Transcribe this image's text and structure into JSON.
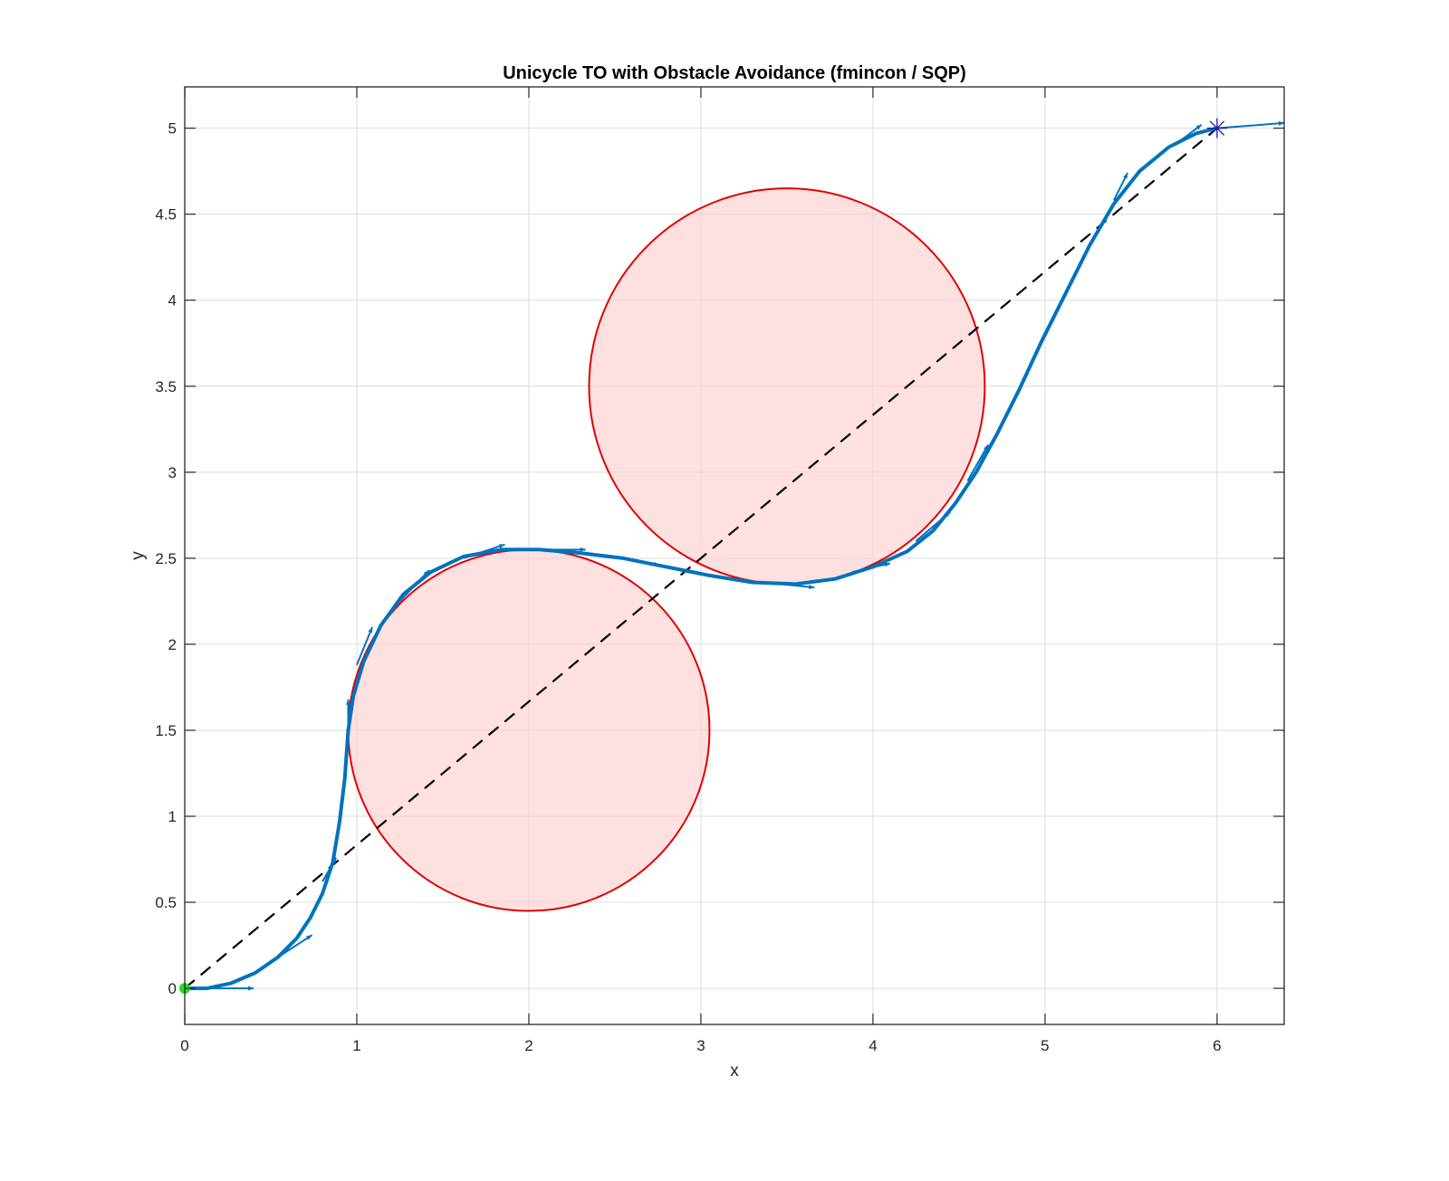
{
  "chart_data": {
    "type": "line",
    "title": "Unicycle TO with Obstacle Avoidance (fmincon / SQP)",
    "xlabel": "x",
    "ylabel": "y",
    "xlim": [
      0,
      6.39
    ],
    "ylim": [
      -0.21,
      5.24
    ],
    "grid": true,
    "xticks": [
      0,
      1,
      2,
      3,
      4,
      5,
      6
    ],
    "yticks": [
      0,
      0.5,
      1,
      1.5,
      2,
      2.5,
      3,
      3.5,
      4,
      4.5,
      5
    ],
    "xtick_labels": [
      "0",
      "1",
      "2",
      "3",
      "4",
      "5",
      "6"
    ],
    "ytick_labels": [
      "0",
      "0.5",
      "1",
      "1.5",
      "2",
      "2.5",
      "3",
      "3.5",
      "4",
      "4.5",
      "5"
    ],
    "obstacles": [
      {
        "name": "obstacle-1",
        "cx": 2.0,
        "cy": 1.5,
        "r": 1.05,
        "edge_color": "#e00000",
        "fill_color": "#ffcccc",
        "fill_opacity": 0.6
      },
      {
        "name": "obstacle-2",
        "cx": 3.5,
        "cy": 3.5,
        "r": 1.15,
        "edge_color": "#e00000",
        "fill_color": "#ffcccc",
        "fill_opacity": 0.6
      }
    ],
    "series": [
      {
        "name": "straight-line reference",
        "style": "dashed",
        "color": "#000000",
        "x": [
          0,
          6
        ],
        "y": [
          0,
          5
        ]
      },
      {
        "name": "optimized trajectory",
        "style": "solid",
        "color": "#0072bd",
        "x": [
          0,
          0.13,
          0.27,
          0.41,
          0.54,
          0.65,
          0.73,
          0.8,
          0.86,
          0.9,
          0.93,
          0.95,
          0.98,
          1.04,
          1.14,
          1.27,
          1.43,
          1.62,
          1.84,
          2.06,
          2.3,
          2.55,
          2.8,
          3.05,
          3.3,
          3.55,
          3.78,
          4.0,
          4.2,
          4.35,
          4.48,
          4.6,
          4.72,
          4.85,
          4.98,
          5.12,
          5.26,
          5.4,
          5.55,
          5.72,
          5.88,
          6.0
        ],
        "y": [
          0,
          0,
          0.03,
          0.09,
          0.18,
          0.29,
          0.41,
          0.55,
          0.73,
          0.97,
          1.22,
          1.5,
          1.7,
          1.9,
          2.11,
          2.29,
          2.42,
          2.51,
          2.55,
          2.55,
          2.53,
          2.5,
          2.45,
          2.4,
          2.36,
          2.35,
          2.38,
          2.45,
          2.54,
          2.66,
          2.82,
          3.0,
          3.22,
          3.48,
          3.76,
          4.04,
          4.32,
          4.56,
          4.75,
          4.89,
          4.97,
          5.0
        ]
      }
    ],
    "heading_arrows": [
      {
        "x0": 0.0,
        "y0": 0.0,
        "x1": 0.4,
        "y1": 0.0
      },
      {
        "x0": 0.54,
        "y0": 0.18,
        "x1": 0.74,
        "y1": 0.31
      },
      {
        "x0": 0.8,
        "y0": 0.62,
        "x1": 0.88,
        "y1": 0.76
      },
      {
        "x0": 0.95,
        "y0": 1.5,
        "x1": 0.95,
        "y1": 1.68
      },
      {
        "x0": 1.0,
        "y0": 1.88,
        "x1": 1.09,
        "y1": 2.1
      },
      {
        "x0": 1.25,
        "y0": 2.25,
        "x1": 1.42,
        "y1": 2.43
      },
      {
        "x0": 1.62,
        "y0": 2.5,
        "x1": 1.86,
        "y1": 2.58
      },
      {
        "x0": 2.08,
        "y0": 2.55,
        "x1": 2.33,
        "y1": 2.55
      },
      {
        "x0": 2.6,
        "y0": 2.49,
        "x1": 2.76,
        "y1": 2.46
      },
      {
        "x0": 3.37,
        "y0": 2.36,
        "x1": 3.66,
        "y1": 2.33
      },
      {
        "x0": 3.88,
        "y0": 2.42,
        "x1": 4.1,
        "y1": 2.47
      },
      {
        "x0": 4.25,
        "y0": 2.6,
        "x1": 4.45,
        "y1": 2.77
      },
      {
        "x0": 4.55,
        "y0": 2.95,
        "x1": 4.67,
        "y1": 3.16
      },
      {
        "x0": 5.4,
        "y0": 4.58,
        "x1": 5.48,
        "y1": 4.74
      },
      {
        "x0": 5.75,
        "y0": 4.9,
        "x1": 5.91,
        "y1": 5.02
      },
      {
        "x0": 6.0,
        "y0": 5.0,
        "x1": 6.39,
        "y1": 5.03
      }
    ],
    "markers": [
      {
        "name": "start",
        "x": 0,
        "y": 0,
        "shape": "filled-circle",
        "color": "#22dd22"
      },
      {
        "name": "goal",
        "x": 6,
        "y": 5,
        "shape": "asterisk",
        "color": "#1a1aa6"
      }
    ]
  }
}
